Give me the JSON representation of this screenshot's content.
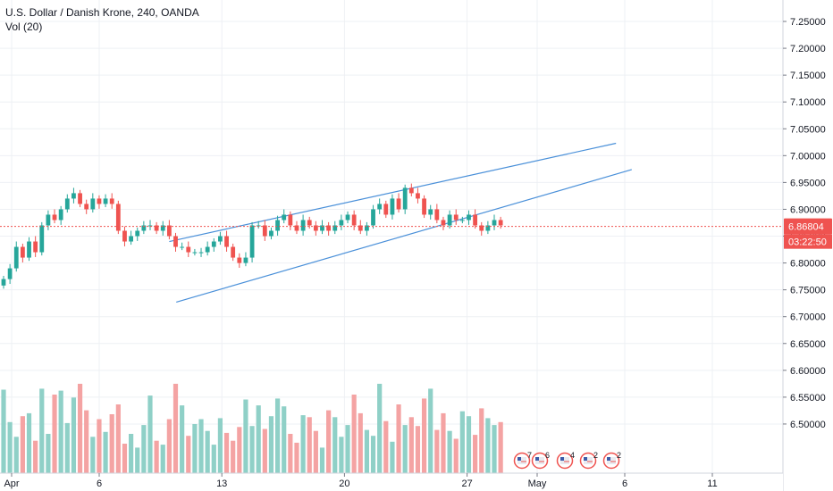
{
  "legend": {
    "symbol": "U.S. Dollar / Danish Krone, 240, OANDA",
    "volume": "Vol (20)"
  },
  "colors": {
    "up": "#26a69a",
    "down": "#ef5350",
    "vol_up": "#8fd0c7",
    "vol_down": "#f4a3a3",
    "trendline": "#4a90d9",
    "price_line": "#ef5350",
    "grid": "#eef0f4"
  },
  "chart_data": {
    "type": "candlestick",
    "title": "U.S. Dollar / Danish Krone, 240, OANDA",
    "x_tick_labels": [
      {
        "label": "Apr",
        "day": 1
      },
      {
        "label": "6",
        "day": 6
      },
      {
        "label": "13",
        "day": 13
      },
      {
        "label": "20",
        "day": 20
      },
      {
        "label": "27",
        "day": 27
      },
      {
        "label": "May",
        "day": 31
      },
      {
        "label": "6",
        "day": 36
      },
      {
        "label": "11",
        "day": 41
      }
    ],
    "ylim": [
      6.455,
      7.265
    ],
    "y_ticks": [
      6.5,
      6.55,
      6.6,
      6.65,
      6.7,
      6.75,
      6.8,
      6.85,
      6.9,
      6.95,
      7.0,
      7.05,
      7.1,
      7.15,
      7.2,
      7.25
    ],
    "last_price": {
      "value": 6.86804,
      "label": "6.86804",
      "countdown": "03:22:50"
    },
    "close_series": [
      6.77,
      6.79,
      6.83,
      6.81,
      6.84,
      6.82,
      6.87,
      6.89,
      6.88,
      6.9,
      6.92,
      6.93,
      6.91,
      6.9,
      6.92,
      6.91,
      6.92,
      6.91,
      6.86,
      6.84,
      6.85,
      6.86,
      6.87,
      6.87,
      6.86,
      6.87,
      6.85,
      6.83,
      6.83,
      6.82,
      6.82,
      6.82,
      6.83,
      6.84,
      6.85,
      6.83,
      6.81,
      6.8,
      6.81,
      6.87,
      6.87,
      6.85,
      6.86,
      6.88,
      6.89,
      6.87,
      6.86,
      6.88,
      6.87,
      6.86,
      6.87,
      6.86,
      6.87,
      6.88,
      6.89,
      6.87,
      6.86,
      6.87,
      6.9,
      6.91,
      6.89,
      6.92,
      6.9,
      6.94,
      6.93,
      6.92,
      6.89,
      6.9,
      6.88,
      6.87,
      6.89,
      6.88,
      6.88,
      6.89,
      6.87,
      6.86,
      6.87,
      6.88,
      6.87
    ],
    "volume_series": [
      0.85,
      0.52,
      0.37,
      0.58,
      0.61,
      0.33,
      0.86,
      0.4,
      0.8,
      0.84,
      0.51,
      0.77,
      0.91,
      0.64,
      0.37,
      0.55,
      0.42,
      0.6,
      0.7,
      0.3,
      0.4,
      0.26,
      0.49,
      0.79,
      0.33,
      0.29,
      0.55,
      0.91,
      0.69,
      0.38,
      0.5,
      0.55,
      0.43,
      0.29,
      0.56,
      0.41,
      0.33,
      0.47,
      0.75,
      0.48,
      0.69,
      0.45,
      0.58,
      0.76,
      0.68,
      0.4,
      0.31,
      0.59,
      0.57,
      0.43,
      0.26,
      0.64,
      0.57,
      0.37,
      0.49,
      0.8,
      0.61,
      0.44,
      0.38,
      0.91,
      0.53,
      0.32,
      0.7,
      0.49,
      0.57,
      0.48,
      0.76,
      0.86,
      0.44,
      0.61,
      0.43,
      0.35,
      0.63,
      0.58,
      0.39,
      0.66,
      0.56,
      0.49,
      0.52
    ],
    "trendlines": [
      {
        "name": "upper",
        "from": {
          "day": 10.0,
          "price": 6.84
        },
        "to": {
          "day": 35.5,
          "price": 7.023
        }
      },
      {
        "name": "lower",
        "from": {
          "day": 10.4,
          "price": 6.727
        },
        "to": {
          "day": 36.4,
          "price": 6.974
        }
      }
    ],
    "events": [
      {
        "label": "7"
      },
      {
        "label": "6"
      },
      {
        "label": "4"
      },
      {
        "label": "2"
      },
      {
        "label": "2"
      }
    ],
    "grid": true
  }
}
